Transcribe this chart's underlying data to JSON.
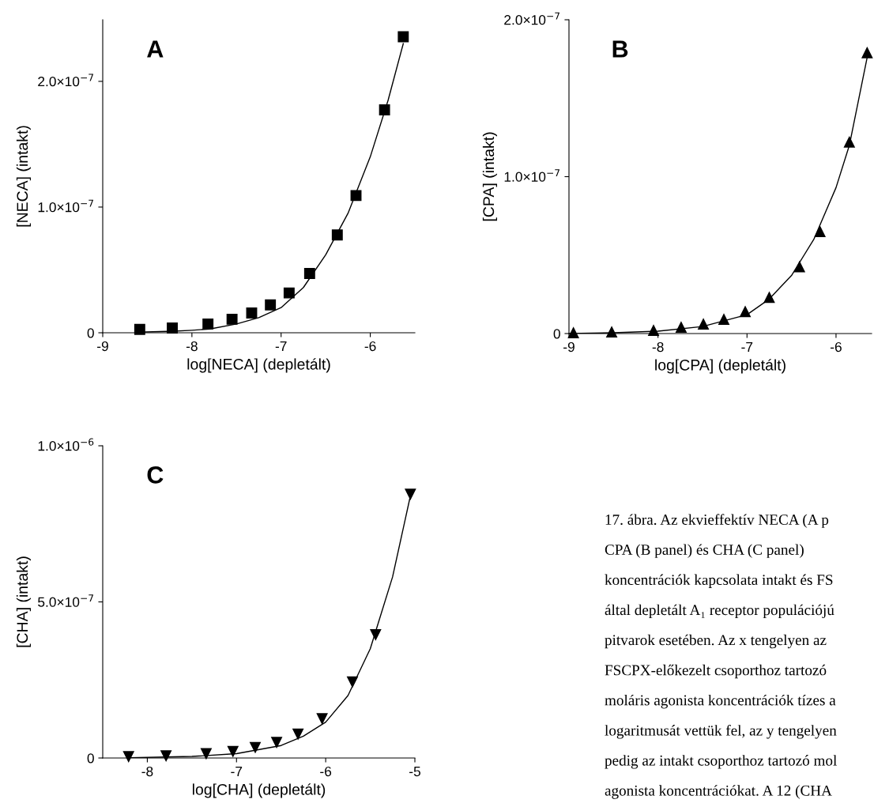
{
  "chart_data": [
    {
      "type": "scatter",
      "title": "A",
      "xlabel": "log[NECA] (depletált)",
      "ylabel": "[NECA] (intakt)",
      "marker": "square",
      "grid": false,
      "xlim": [
        -9,
        -5.5
      ],
      "xticks": [
        -9,
        -8,
        -7,
        -6
      ],
      "ylim": [
        0,
        2.49e-07
      ],
      "yticks": [
        0,
        {
          "value": 1e-07,
          "label": "1.0×10$^{−7}$"
        },
        {
          "value": 2e-07,
          "label": "2.0×10$^{−7}$"
        }
      ],
      "series": [
        {
          "color": "#000000",
          "x": [
            -8.585,
            -8.22,
            -7.82,
            -7.55,
            -7.33,
            -7.12,
            -6.91,
            -6.68,
            -6.37,
            -6.16,
            -5.84,
            -5.63
          ],
          "values": [
            2.7e-09,
            3.8e-09,
            7e-09,
            1.08e-08,
            1.57e-08,
            2.22e-08,
            3.17e-08,
            4.72e-08,
            7.78e-08,
            1.092e-07,
            1.773e-07,
            2.355e-07
          ]
        },
        {
          "type": "line",
          "marker": "none",
          "color": "#000000",
          "x": [
            -8.6,
            -8.2,
            -8.0,
            -7.8,
            -7.5,
            -7.25,
            -7.0,
            -6.75,
            -6.5,
            -6.25,
            -6.0,
            -5.8,
            -5.63
          ],
          "values": [
            5e-10,
            1.3e-09,
            2e-09,
            3e-09,
            7e-09,
            1.2e-08,
            2e-08,
            3.6e-08,
            6.2e-08,
            9.5e-08,
            1.4e-07,
            1.85e-07,
            2.3e-07
          ]
        }
      ]
    },
    {
      "type": "scatter",
      "title": "B",
      "xlabel": "log[CPA] (depletált)",
      "ylabel": "[CPA] (intakt)",
      "marker": "triangle",
      "grid": false,
      "xlim": [
        -9,
        -5.6
      ],
      "xticks": [
        -9,
        -8,
        -7,
        -6
      ],
      "ylim": [
        0,
        2e-07
      ],
      "yticks": [
        0,
        {
          "value": 1e-07,
          "label": "1.0×10$^{−7}$"
        },
        {
          "value": 2e-07,
          "label": "2.0×10$^{−7}$"
        }
      ],
      "series": [
        {
          "color": "#000000",
          "x": [
            -8.95,
            -8.52,
            -8.05,
            -7.74,
            -7.49,
            -7.26,
            -7.02,
            -6.75,
            -6.41,
            -6.18,
            -5.85,
            -5.65
          ],
          "values": [
            5e-10,
            1e-09,
            2e-09,
            4e-09,
            6e-09,
            9e-09,
            1.4e-08,
            2.3e-08,
            4.25e-08,
            6.5e-08,
            1.22e-07,
            1.79e-07
          ]
        },
        {
          "type": "line",
          "marker": "none",
          "color": "#000000",
          "x": [
            -9.0,
            -8.5,
            -8.0,
            -7.5,
            -7.0,
            -6.75,
            -6.5,
            -6.25,
            -6.0,
            -5.85,
            -5.65
          ],
          "values": [
            0,
            5e-10,
            1.5e-09,
            4.5e-09,
            1.2e-08,
            2.2e-08,
            3.7e-08,
            6e-08,
            9.3e-08,
            1.2e-07,
            1.76e-07
          ]
        }
      ]
    },
    {
      "type": "scatter",
      "title": "C",
      "xlabel": "log[CHA] (depletált)",
      "ylabel": "[CHA] (intakt)",
      "marker": "triangle_down",
      "grid": false,
      "xlim": [
        -8.5,
        -5
      ],
      "xticks": [
        -8,
        -7,
        -6,
        -5
      ],
      "ylim": [
        0,
        1e-06
      ],
      "yticks": [
        0,
        {
          "value": 5e-07,
          "label": "5.0×10$^{−7}$"
        },
        {
          "value": 1e-06,
          "label": "1.0×10$^{−6}$"
        }
      ],
      "series": [
        {
          "color": "#000000",
          "x": [
            -8.21,
            -7.79,
            -7.34,
            -7.04,
            -6.79,
            -6.55,
            -6.31,
            -6.04,
            -5.7,
            -5.44,
            -5.05
          ],
          "values": [
            4.5e-09,
            7e-09,
            1.4e-08,
            2.1e-08,
            3.4e-08,
            5e-08,
            7.7e-08,
            1.26e-07,
            2.44e-07,
            3.95e-07,
            8.45e-07
          ]
        },
        {
          "type": "line",
          "marker": "none",
          "color": "#000000",
          "x": [
            -8.2,
            -7.5,
            -7.0,
            -6.5,
            -6.25,
            -6.0,
            -5.75,
            -5.5,
            -5.25,
            -5.05
          ],
          "values": [
            5e-10,
            5e-09,
            1.4e-08,
            4e-08,
            7e-08,
            1.15e-07,
            2e-07,
            3.5e-07,
            5.8e-07,
            8.4e-07
          ]
        }
      ]
    },
    {
      "type": "other",
      "annotations": [
        "17. ábra. Az ekvieffektív NECA (A p",
        "CPA (B panel) és CHA (C panel)",
        "koncentrációk kapcsolata intakt és FS",
        "által depletált A₁ receptor populációjú",
        "pitvarok esetében. Az x tengelyen az",
        "FSCPX-előkezelt csoporthoz tartozó",
        "moláris agonista koncentrációk tízes a",
        "logaritmusát vettük fel, az y tengelyen",
        "pedig az intakt csoporthoz tartozó mol",
        "agonista koncentrációkat. A 12 (CHA"
      ]
    }
  ]
}
